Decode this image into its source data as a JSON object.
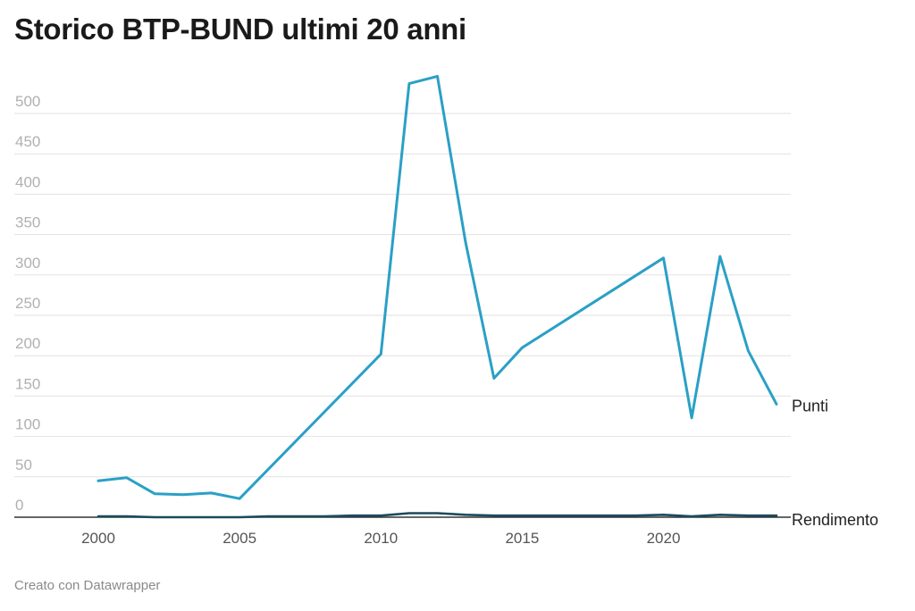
{
  "page": {
    "title": "Storico BTP-BUND ultimi 20 anni",
    "footer": "Creato con Datawrapper"
  },
  "chart_data": {
    "type": "line",
    "title": "Storico BTP-BUND ultimi 20 anni",
    "xlabel": "",
    "ylabel": "",
    "xlim": [
      1996.5,
      2024
    ],
    "ylim": [
      0,
      500
    ],
    "x_ticks": [
      2000,
      2005,
      2010,
      2015,
      2020
    ],
    "y_ticks": [
      0,
      50,
      100,
      150,
      200,
      250,
      300,
      350,
      400,
      450,
      500
    ],
    "grid": true,
    "legend": "direct labels at line ends",
    "series": [
      {
        "name": "Punti",
        "color": "#2aa0c6",
        "points": [
          [
            2000,
            45
          ],
          [
            2001,
            49
          ],
          [
            2002,
            29
          ],
          [
            2003,
            28
          ],
          [
            2004,
            30
          ],
          [
            2005,
            23
          ],
          [
            2010,
            202
          ],
          [
            2011,
            537
          ],
          [
            2012,
            546
          ],
          [
            2013,
            340
          ],
          [
            2014,
            172
          ],
          [
            2015,
            210
          ],
          [
            2020,
            321
          ],
          [
            2021,
            123
          ],
          [
            2022,
            323
          ],
          [
            2023,
            206
          ],
          [
            2024,
            140
          ]
        ]
      },
      {
        "name": "Rendimento",
        "color": "#1c4a5e",
        "points": [
          [
            2000,
            1
          ],
          [
            2001,
            1
          ],
          [
            2002,
            0
          ],
          [
            2003,
            0
          ],
          [
            2004,
            0
          ],
          [
            2005,
            0
          ],
          [
            2006,
            1
          ],
          [
            2007,
            1
          ],
          [
            2008,
            1
          ],
          [
            2009,
            2
          ],
          [
            2010,
            2
          ],
          [
            2011,
            5
          ],
          [
            2012,
            5
          ],
          [
            2013,
            3
          ],
          [
            2014,
            2
          ],
          [
            2015,
            2
          ],
          [
            2016,
            2
          ],
          [
            2017,
            2
          ],
          [
            2018,
            2
          ],
          [
            2019,
            2
          ],
          [
            2020,
            3
          ],
          [
            2021,
            1
          ],
          [
            2022,
            3
          ],
          [
            2023,
            2
          ],
          [
            2024,
            2
          ]
        ]
      }
    ]
  }
}
